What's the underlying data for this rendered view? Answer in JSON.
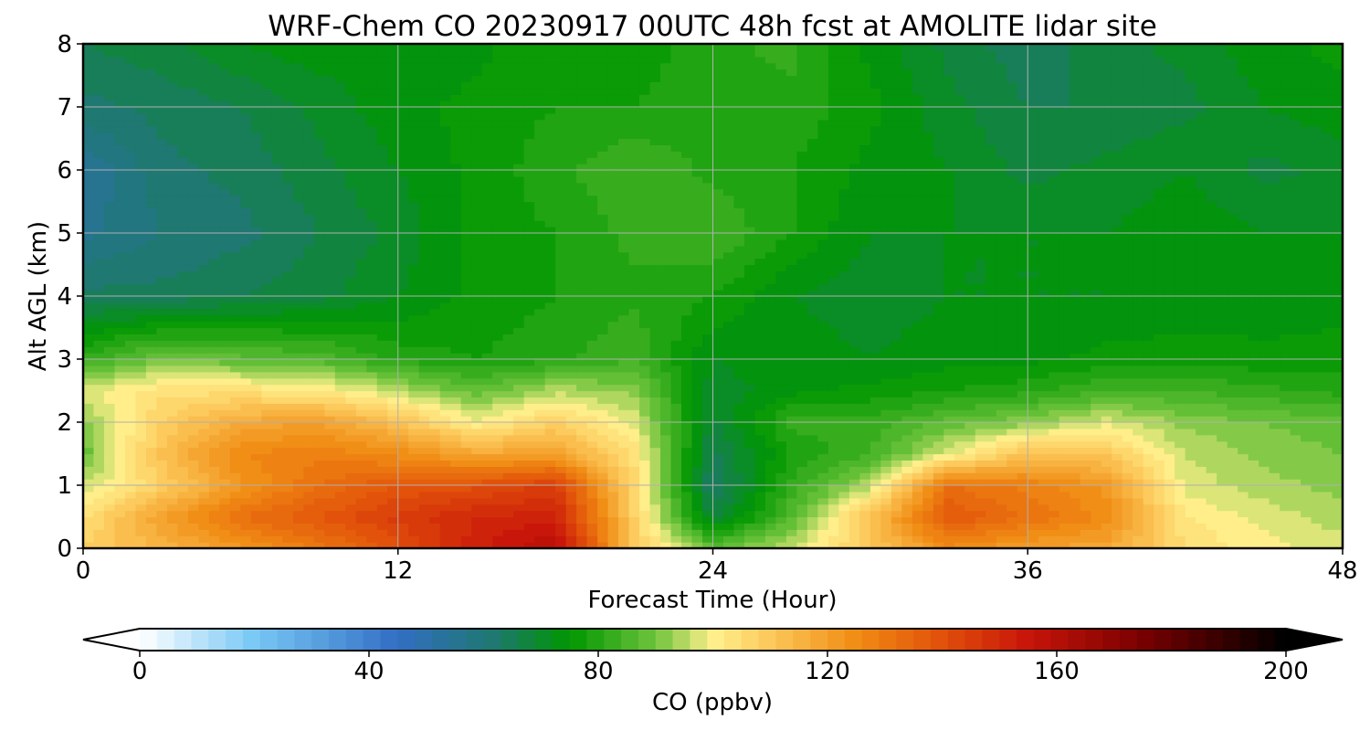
{
  "chart_data": {
    "type": "heatmap",
    "title": "WRF-Chem CO  20230917 00UTC 48h fcst at AMOLITE lidar site",
    "xlabel": "Forecast Time (Hour)",
    "ylabel": "Alt AGL (km)",
    "xlim": [
      0,
      48
    ],
    "ylim": [
      0,
      8
    ],
    "xticks": [
      "0",
      "12",
      "24",
      "36",
      "48"
    ],
    "yticks": [
      "0",
      "1",
      "2",
      "3",
      "4",
      "5",
      "6",
      "7",
      "8"
    ],
    "grid": true,
    "x": [
      0,
      3,
      6,
      9,
      12,
      15,
      18,
      21,
      24,
      27,
      30,
      33,
      36,
      39,
      42,
      45,
      48
    ],
    "y": [
      0,
      0.5,
      1,
      1.5,
      2,
      2.5,
      3,
      4,
      5,
      6,
      7,
      8
    ],
    "z": [
      [
        108,
        115,
        122,
        130,
        140,
        152,
        160,
        110,
        88,
        96,
        110,
        125,
        120,
        118,
        105,
        100,
        98
      ],
      [
        104,
        120,
        132,
        138,
        145,
        150,
        152,
        108,
        68,
        86,
        112,
        138,
        132,
        125,
        102,
        98,
        94
      ],
      [
        96,
        108,
        122,
        132,
        138,
        140,
        145,
        106,
        62,
        82,
        95,
        132,
        128,
        122,
        98,
        94,
        92
      ],
      [
        88,
        112,
        126,
        128,
        125,
        118,
        120,
        104,
        65,
        78,
        84,
        98,
        112,
        110,
        96,
        92,
        90
      ],
      [
        92,
        108,
        118,
        120,
        112,
        100,
        108,
        98,
        68,
        82,
        82,
        88,
        92,
        98,
        92,
        90,
        88
      ],
      [
        98,
        104,
        104,
        102,
        96,
        88,
        95,
        92,
        70,
        74,
        76,
        78,
        80,
        84,
        84,
        82,
        80
      ],
      [
        82,
        90,
        88,
        86,
        80,
        78,
        80,
        84,
        72,
        74,
        72,
        74,
        74,
        76,
        77,
        76,
        76
      ],
      [
        64,
        64,
        66,
        68,
        72,
        76,
        78,
        80,
        78,
        72,
        70,
        72,
        72,
        72,
        72,
        73,
        74
      ],
      [
        56,
        60,
        62,
        66,
        70,
        76,
        78,
        82,
        84,
        78,
        72,
        72,
        72,
        72,
        74,
        72,
        72
      ],
      [
        54,
        62,
        64,
        68,
        72,
        76,
        80,
        84,
        80,
        78,
        74,
        72,
        68,
        70,
        72,
        68,
        70
      ],
      [
        62,
        64,
        66,
        70,
        74,
        76,
        78,
        78,
        80,
        80,
        76,
        70,
        66,
        66,
        68,
        72,
        74
      ],
      [
        66,
        68,
        72,
        74,
        72,
        74,
        78,
        76,
        80,
        82,
        74,
        68,
        64,
        68,
        70,
        74,
        76
      ]
    ],
    "colorbar": {
      "label": "CO  (ppbv)",
      "min": 0,
      "max": 200,
      "ticks": [
        "0",
        "40",
        "80",
        "120",
        "160",
        "200"
      ],
      "extend": "both"
    }
  }
}
